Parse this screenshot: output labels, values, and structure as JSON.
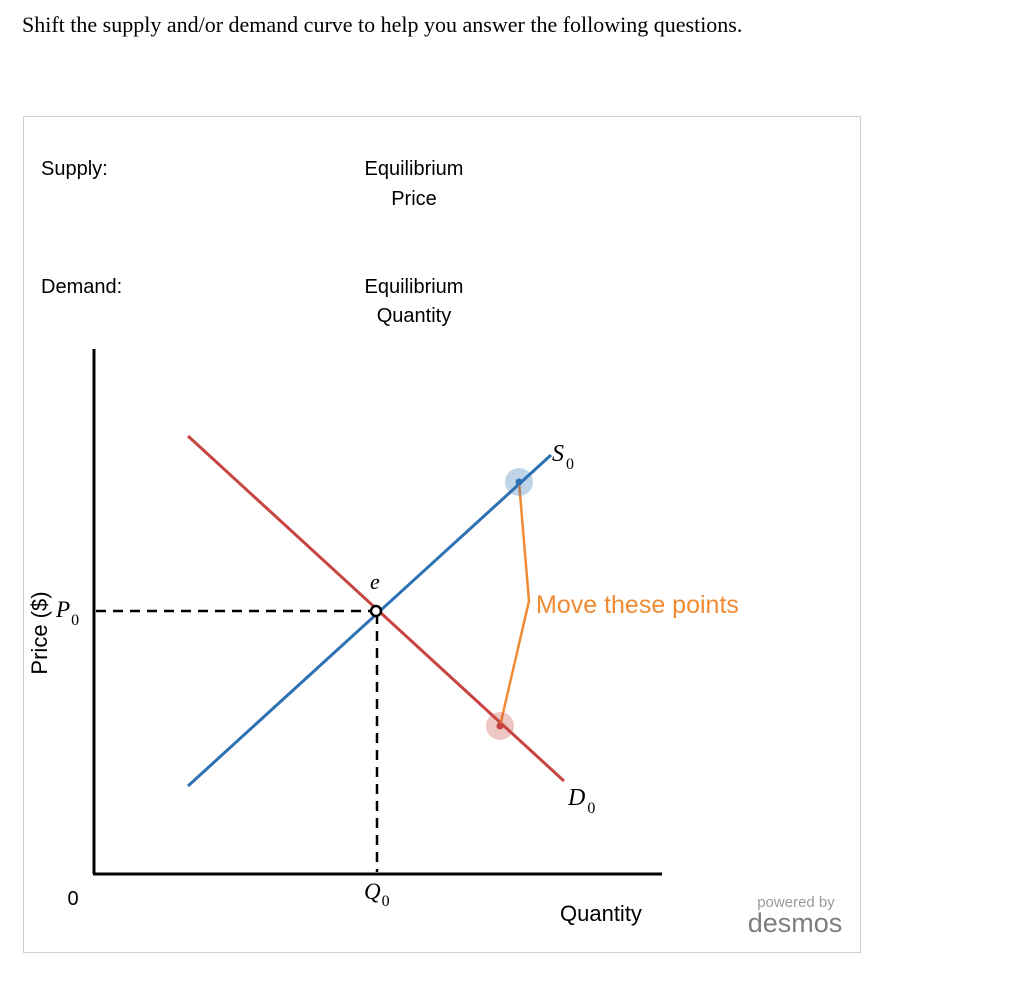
{
  "prompt": "Shift the supply and/or demand curve to help you answer the following questions.",
  "panel": {
    "supply_label": "Supply:",
    "demand_label": "Demand:",
    "eq_price": [
      "Equilibrium",
      "Price"
    ],
    "eq_quantity": [
      "Equilibrium",
      "Quantity"
    ]
  },
  "graph": {
    "y_axis_label": "Price ($)",
    "x_axis_label": "Quantity",
    "origin_label": "0",
    "price_label": {
      "main": "P",
      "sub": "0"
    },
    "quantity_label": {
      "main": "Q",
      "sub": "0"
    },
    "supply_curve_label": {
      "main": "S",
      "sub": "0"
    },
    "demand_curve_label": {
      "main": "D",
      "sub": "0"
    },
    "equilibrium_label": "e",
    "hint": "Move these points",
    "colors": {
      "supply": "#2d70b3",
      "demand": "#c74440",
      "hint": "#f08a33",
      "axis": "#000000"
    }
  },
  "watermark": {
    "top": "powered by",
    "brand": "desmos"
  }
}
